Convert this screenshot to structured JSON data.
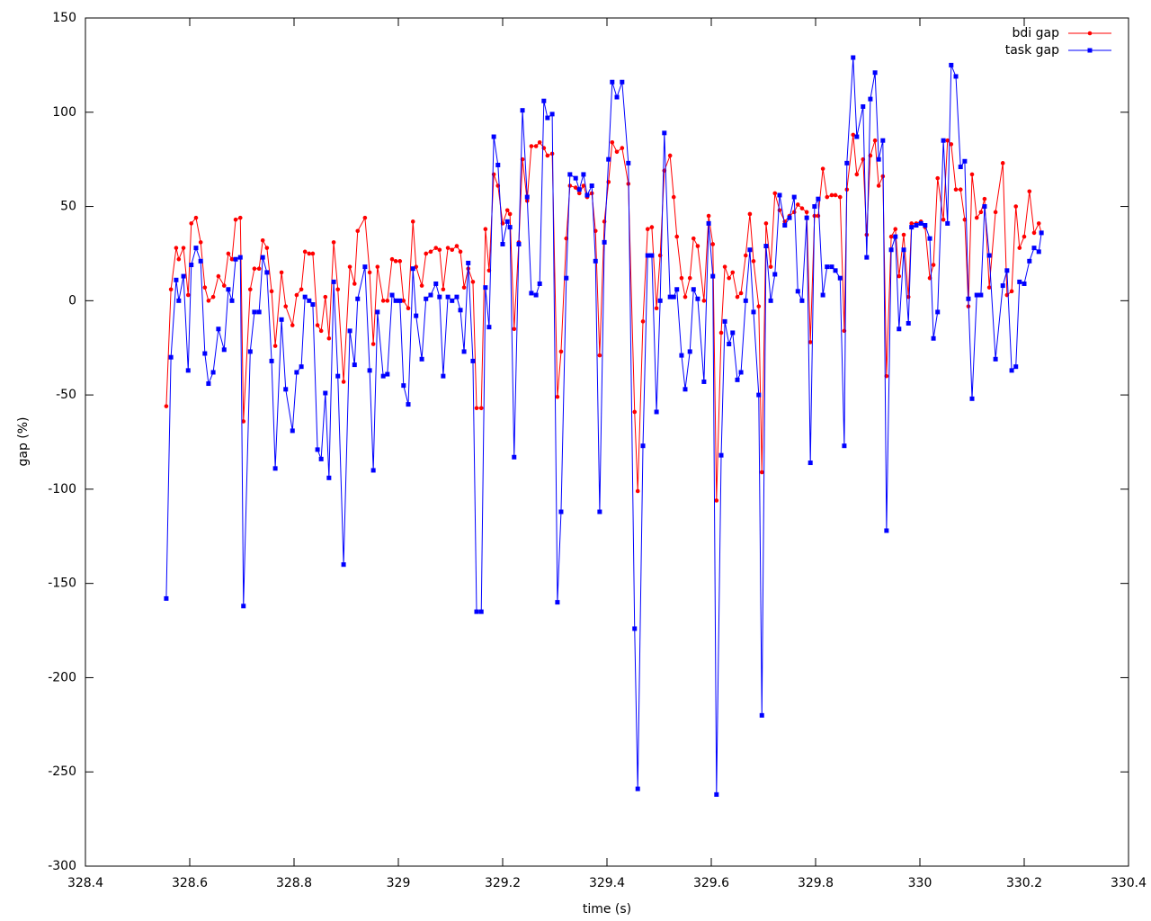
{
  "chart_data": {
    "type": "line",
    "x_label": "time (s)",
    "y_label": "gap (%)",
    "x": [
      328.555,
      328.564,
      328.574,
      328.579,
      328.588,
      328.597,
      328.603,
      328.612,
      328.621,
      328.629,
      328.636,
      328.645,
      328.655,
      328.666,
      328.674,
      328.681,
      328.688,
      328.697,
      328.703,
      328.716,
      328.724,
      328.733,
      328.74,
      328.748,
      328.757,
      328.764,
      328.776,
      328.784,
      328.797,
      328.805,
      328.814,
      328.821,
      328.829,
      328.836,
      328.845,
      328.852,
      328.86,
      328.867,
      328.876,
      328.884,
      328.895,
      328.907,
      328.916,
      328.922,
      328.936,
      328.945,
      328.952,
      328.96,
      328.971,
      328.979,
      328.988,
      328.995,
      329.003,
      329.01,
      329.019,
      329.028,
      329.034,
      329.045,
      329.053,
      329.062,
      329.072,
      329.079,
      329.086,
      329.095,
      329.103,
      329.112,
      329.119,
      329.126,
      329.134,
      329.143,
      329.15,
      329.159,
      329.167,
      329.174,
      329.183,
      329.191,
      329.2,
      329.209,
      329.214,
      329.222,
      329.231,
      329.238,
      329.247,
      329.255,
      329.264,
      329.271,
      329.279,
      329.286,
      329.295,
      329.305,
      329.312,
      329.322,
      329.329,
      329.34,
      329.347,
      329.355,
      329.362,
      329.371,
      329.378,
      329.386,
      329.395,
      329.403,
      329.41,
      329.419,
      329.429,
      329.441,
      329.453,
      329.459,
      329.469,
      329.478,
      329.486,
      329.495,
      329.502,
      329.51,
      329.521,
      329.528,
      329.534,
      329.543,
      329.55,
      329.559,
      329.566,
      329.574,
      329.586,
      329.595,
      329.603,
      329.61,
      329.619,
      329.626,
      329.634,
      329.641,
      329.65,
      329.657,
      329.666,
      329.674,
      329.681,
      329.691,
      329.697,
      329.705,
      329.714,
      329.722,
      329.731,
      329.741,
      329.75,
      329.759,
      329.766,
      329.774,
      329.783,
      329.79,
      329.798,
      329.805,
      329.814,
      329.822,
      329.831,
      329.838,
      329.847,
      329.855,
      329.86,
      329.872,
      329.879,
      329.891,
      329.898,
      329.905,
      329.914,
      329.921,
      329.929,
      329.936,
      329.945,
      329.953,
      329.96,
      329.969,
      329.978,
      329.984,
      329.993,
      330.002,
      330.01,
      330.019,
      330.026,
      330.034,
      330.045,
      330.053,
      330.06,
      330.069,
      330.078,
      330.086,
      330.093,
      330.1,
      330.109,
      330.117,
      330.124,
      330.133,
      330.145,
      330.159,
      330.167,
      330.176,
      330.184,
      330.191,
      330.2,
      330.21,
      330.219,
      330.228,
      330.233
    ],
    "series": [
      {
        "name": "bdi gap",
        "color": "#ff0000",
        "marker": "circle",
        "values": [
          -56,
          6,
          28,
          22,
          28,
          3,
          41,
          44,
          31,
          7,
          0,
          2,
          13,
          8,
          25,
          22,
          43,
          44,
          -64,
          6,
          17,
          17,
          32,
          28,
          5,
          -24,
          15,
          -3,
          -13,
          3,
          6,
          26,
          25,
          25,
          -13,
          -16,
          2,
          -20,
          31,
          6,
          -43,
          18,
          9,
          37,
          44,
          15,
          -23,
          18,
          0,
          0,
          22,
          21,
          21,
          0,
          -4,
          42,
          18,
          8,
          25,
          26,
          28,
          27,
          6,
          28,
          27,
          29,
          26,
          7,
          17,
          10,
          -57,
          -57,
          38,
          16,
          67,
          61,
          41,
          48,
          46,
          -15,
          31,
          75,
          53,
          82,
          82,
          84,
          81,
          77,
          78,
          -51,
          -27,
          33,
          61,
          60,
          57,
          61,
          55,
          57,
          37,
          -29,
          42,
          63,
          84,
          79,
          81,
          62,
          -59,
          -101,
          -11,
          38,
          39,
          -4,
          24,
          69,
          77,
          55,
          34,
          12,
          2,
          12,
          33,
          29,
          0,
          45,
          30,
          -106,
          -17,
          18,
          12,
          15,
          2,
          4,
          24,
          46,
          21,
          -3,
          -91,
          41,
          18,
          57,
          48,
          42,
          45,
          47,
          51,
          49,
          47,
          -22,
          45,
          45,
          70,
          55,
          56,
          56,
          55,
          -16,
          59,
          88,
          67,
          75,
          35,
          77,
          85,
          61,
          66,
          -40,
          34,
          38,
          13,
          35,
          2,
          41,
          41,
          42,
          39,
          12,
          19,
          65,
          43,
          85,
          83,
          59,
          59,
          43,
          -3,
          67,
          44,
          47,
          54,
          7,
          47,
          73,
          3,
          5,
          50,
          28,
          34,
          58,
          36,
          41,
          36
        ]
      },
      {
        "name": "task gap",
        "color": "#0000ff",
        "marker": "square",
        "values": [
          -158,
          -30,
          11,
          0,
          13,
          -37,
          19,
          28,
          21,
          -28,
          -44,
          -38,
          -15,
          -26,
          6,
          0,
          22,
          23,
          -162,
          -27,
          -6,
          -6,
          23,
          15,
          -32,
          -89,
          -10,
          -47,
          -69,
          -38,
          -35,
          2,
          0,
          -2,
          -79,
          -84,
          -49,
          -94,
          10,
          -40,
          -140,
          -16,
          -34,
          1,
          18,
          -37,
          -90,
          -6,
          -40,
          -39,
          3,
          0,
          0,
          -45,
          -55,
          17,
          -8,
          -31,
          1,
          3,
          9,
          2,
          -40,
          2,
          0,
          2,
          -5,
          -27,
          20,
          -32,
          -165,
          -165,
          7,
          -14,
          87,
          72,
          30,
          42,
          39,
          -83,
          30,
          101,
          55,
          4,
          3,
          9,
          106,
          97,
          99,
          -160,
          -112,
          12,
          67,
          65,
          59,
          67,
          56,
          61,
          21,
          -112,
          31,
          75,
          116,
          108,
          116,
          73,
          -174,
          -259,
          -77,
          24,
          24,
          -59,
          0,
          89,
          2,
          2,
          6,
          -29,
          -47,
          -27,
          6,
          1,
          -43,
          41,
          13,
          -262,
          -82,
          -11,
          -23,
          -17,
          -42,
          -38,
          0,
          27,
          -6,
          -50,
          -220,
          29,
          0,
          14,
          56,
          40,
          44,
          55,
          5,
          0,
          44,
          -86,
          50,
          54,
          3,
          18,
          18,
          16,
          12,
          -77,
          73,
          129,
          87,
          103,
          23,
          107,
          121,
          75,
          85,
          -122,
          27,
          34,
          -15,
          27,
          -12,
          39,
          40,
          41,
          40,
          33,
          -20,
          -6,
          85,
          41,
          125,
          119,
          71,
          74,
          1,
          -52,
          3,
          3,
          50,
          24,
          -31,
          8,
          16,
          -37,
          -35,
          10,
          9,
          21,
          28,
          26,
          36
        ]
      }
    ],
    "xlim": [
      328.4,
      330.4
    ],
    "xticks": [
      328.4,
      328.6,
      328.8,
      329,
      329.2,
      329.4,
      329.6,
      329.8,
      330,
      330.2,
      330.4
    ],
    "ylim": [
      -300,
      150
    ],
    "yticks": [
      -300,
      -250,
      -200,
      -150,
      -100,
      -50,
      0,
      50,
      100,
      150
    ],
    "grid": false,
    "legend": "top-right"
  }
}
